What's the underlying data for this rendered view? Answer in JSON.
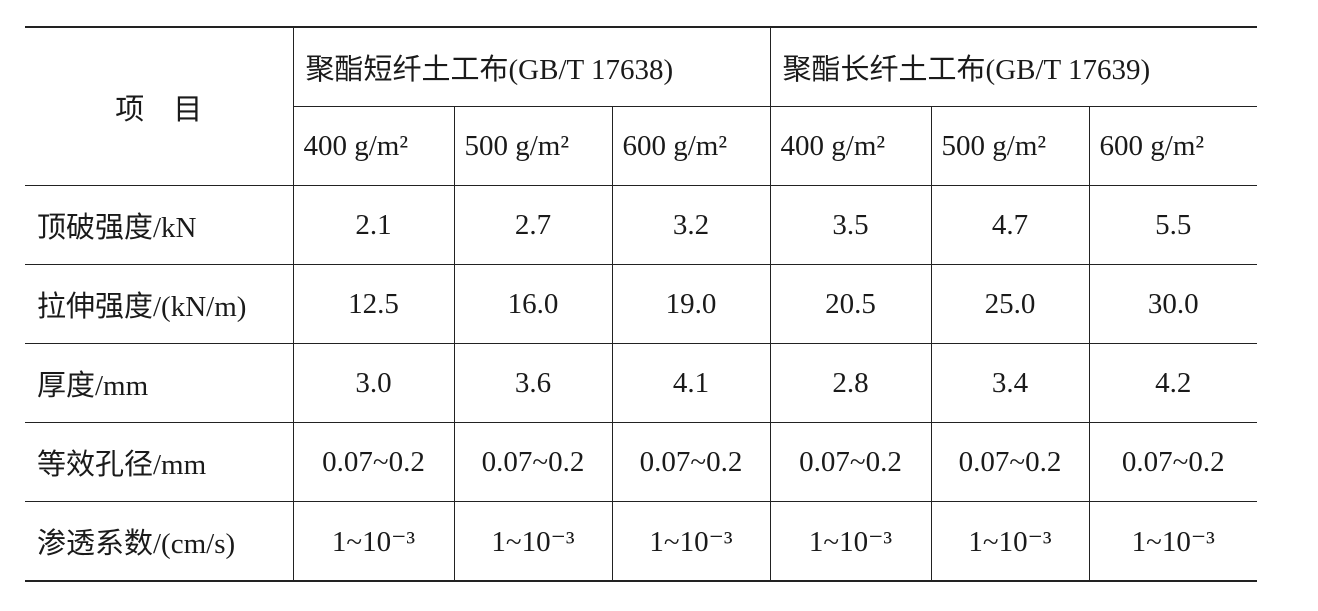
{
  "table": {
    "header": {
      "item": "项　目",
      "groups": [
        "聚酯短纤土工布(GB/T  17638)",
        "聚酯长纤土工布(GB/T  17639)"
      ],
      "units": [
        "400  g/m²",
        "500  g/m²",
        "600  g/m²",
        "400  g/m²",
        "500  g/m²",
        "600  g/m²"
      ]
    },
    "rows": [
      [
        "顶破强度/kN",
        "2.1",
        "2.7",
        "3.2",
        "3.5",
        "4.7",
        "5.5"
      ],
      [
        "拉伸强度/(kN/m)",
        "12.5",
        "16.0",
        "19.0",
        "20.5",
        "25.0",
        "30.0"
      ],
      [
        "厚度/mm",
        "3.0",
        "3.6",
        "4.1",
        "2.8",
        "3.4",
        "4.2"
      ],
      [
        "等效孔径/mm",
        "0.07~0.2",
        "0.07~0.2",
        "0.07~0.2",
        "0.07~0.2",
        "0.07~0.2",
        "0.07~0.2"
      ],
      [
        "渗透系数/(cm/s)",
        "1~10⁻³",
        "1~10⁻³",
        "1~10⁻³",
        "1~10⁻³",
        "1~10⁻³",
        "1~10⁻³"
      ]
    ]
  }
}
